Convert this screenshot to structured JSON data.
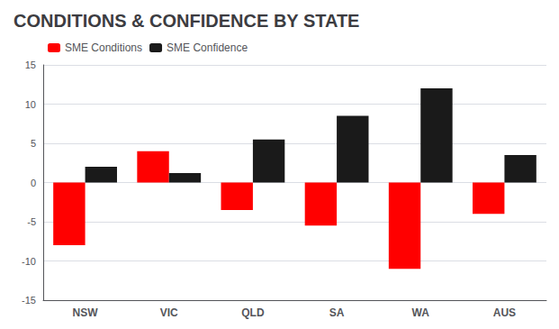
{
  "chart_data": {
    "type": "bar",
    "title": "CONDITIONS & CONFIDENCE BY STATE",
    "categories": [
      "NSW",
      "VIC",
      "QLD",
      "SA",
      "WA",
      "AUS"
    ],
    "series": [
      {
        "name": "SME Conditions",
        "color": "#FF0000",
        "values": [
          -8.0,
          4.0,
          -3.5,
          -5.5,
          -11.0,
          -4.0
        ]
      },
      {
        "name": "SME Confidence",
        "color": "#1a1a1a",
        "values": [
          2.0,
          1.2,
          5.5,
          8.5,
          12.0,
          3.5
        ]
      }
    ],
    "ylim": [
      -15,
      15
    ],
    "yticks": [
      -15,
      -10,
      -5,
      0,
      5,
      10,
      15
    ],
    "grid": true,
    "legend": "upper left"
  }
}
